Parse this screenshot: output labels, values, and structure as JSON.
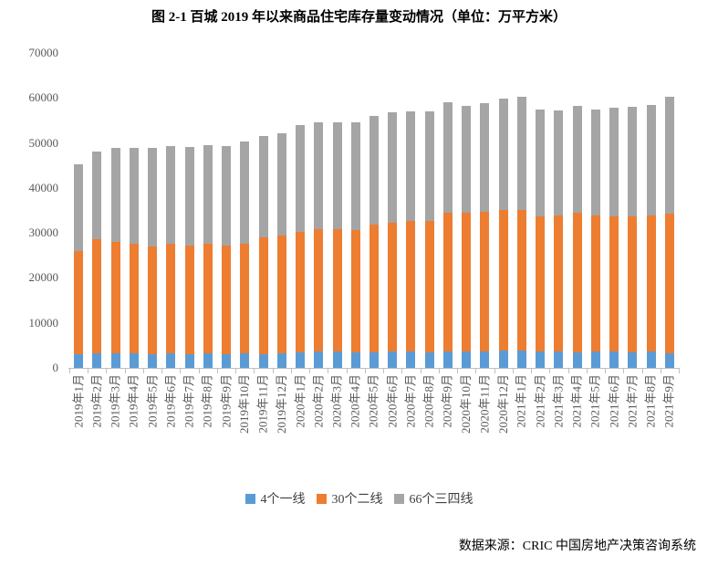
{
  "title": "图 2-1 百城 2019 年以来商品住宅库存量变动情况（单位：万平方米）",
  "source": "数据来源：CRIC 中国房地产决策咨询系统",
  "colors": {
    "tier1_blue": "#5B9BD5",
    "tier2_orange": "#ED7D31",
    "tier34_gray": "#A5A5A5",
    "axis_text": "#595959",
    "axis_line": "#BFBFBF"
  },
  "chart_data": {
    "type": "bar",
    "stacked": true,
    "title": "图 2-1 百城 2019 年以来商品住宅库存量变动情况（单位：万平方米）",
    "xlabel": "",
    "ylabel": "",
    "unit": "万平方米",
    "grid": false,
    "legend_position": "bottom",
    "ylim": [
      0,
      70000
    ],
    "y_ticks": [
      0,
      10000,
      20000,
      30000,
      40000,
      50000,
      60000,
      70000
    ],
    "categories": [
      "2019年1月",
      "2019年2月",
      "2019年3月",
      "2019年4月",
      "2019年5月",
      "2019年6月",
      "2019年7月",
      "2019年8月",
      "2019年9月",
      "2019年10月",
      "2019年11月",
      "2019年12月",
      "2020年1月",
      "2020年2月",
      "2020年3月",
      "2020年4月",
      "2020年5月",
      "2020年6月",
      "2020年7月",
      "2020年8月",
      "2020年9月",
      "2020年10月",
      "2020年11月",
      "2020年12月",
      "2021年1月",
      "2021年2月",
      "2021年3月",
      "2021年4月",
      "2021年5月",
      "2021年6月",
      "2021年7月",
      "2021年8月",
      "2021年9月"
    ],
    "series": [
      {
        "name": "4个一线",
        "color": "#5B9BD5",
        "values": [
          3000,
          3200,
          3300,
          3200,
          3000,
          3200,
          3100,
          3200,
          3000,
          3200,
          3000,
          3200,
          3400,
          3600,
          3600,
          3400,
          3500,
          3600,
          3600,
          3500,
          3600,
          3700,
          3700,
          3900,
          3900,
          3600,
          3600,
          3500,
          3600,
          3600,
          3500,
          3600,
          3300
        ]
      },
      {
        "name": "30个二线",
        "color": "#ED7D31",
        "values": [
          22900,
          25400,
          24600,
          24300,
          23900,
          24300,
          24000,
          24300,
          24100,
          24300,
          26100,
          26300,
          26800,
          27300,
          27300,
          27300,
          28300,
          28700,
          29100,
          29200,
          30900,
          30700,
          31000,
          31300,
          31200,
          30000,
          30200,
          30900,
          30200,
          30000,
          30200,
          30200,
          30900
        ]
      },
      {
        "name": "66个三四线",
        "color": "#A5A5A5",
        "values": [
          19300,
          19500,
          21000,
          21300,
          21900,
          21900,
          22100,
          22100,
          22200,
          22800,
          22500,
          22600,
          23700,
          23700,
          23700,
          23900,
          24300,
          24500,
          24400,
          24400,
          24500,
          23900,
          24100,
          24600,
          25100,
          23900,
          23400,
          23800,
          23700,
          24200,
          24300,
          24600,
          26100
        ]
      }
    ],
    "totals": [
      45200,
      48100,
      48900,
      48800,
      48800,
      49400,
      49200,
      49600,
      49300,
      50300,
      51600,
      52100,
      53900,
      54600,
      54600,
      54600,
      56100,
      56800,
      57100,
      57100,
      59000,
      58300,
      58800,
      59800,
      60200,
      57500,
      57200,
      58200,
      57500,
      57800,
      58000,
      58400,
      60300
    ]
  }
}
